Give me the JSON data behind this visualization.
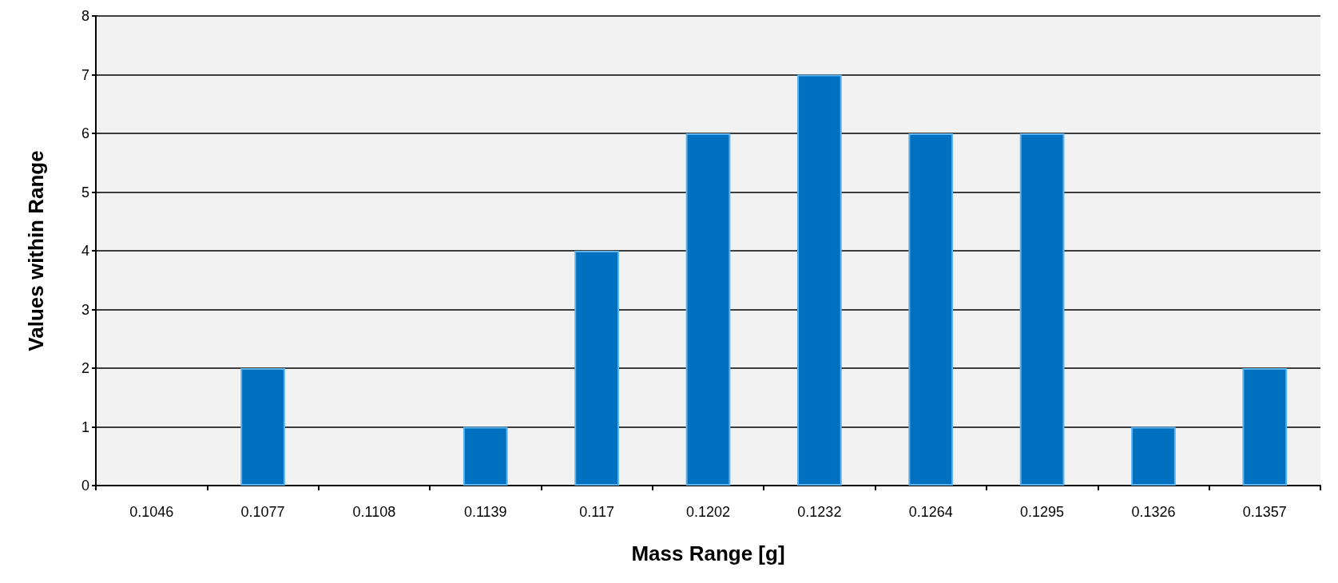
{
  "chart_data": {
    "type": "bar",
    "xlabel": "Mass Range [g]",
    "ylabel": "Values within Range",
    "categories": [
      "0.1046",
      "0.1077",
      "0.1108",
      "0.1139",
      "0.117",
      "0.1202",
      "0.1232",
      "0.1264",
      "0.1295",
      "0.1326",
      "0.1357"
    ],
    "values": [
      0,
      2,
      0,
      1,
      4,
      6,
      7,
      6,
      6,
      1,
      2
    ],
    "color": "#0070c0",
    "ylim": [
      0,
      8
    ],
    "yticks": [
      0,
      1,
      2,
      3,
      4,
      5,
      6,
      7,
      8
    ],
    "grid": "y"
  }
}
